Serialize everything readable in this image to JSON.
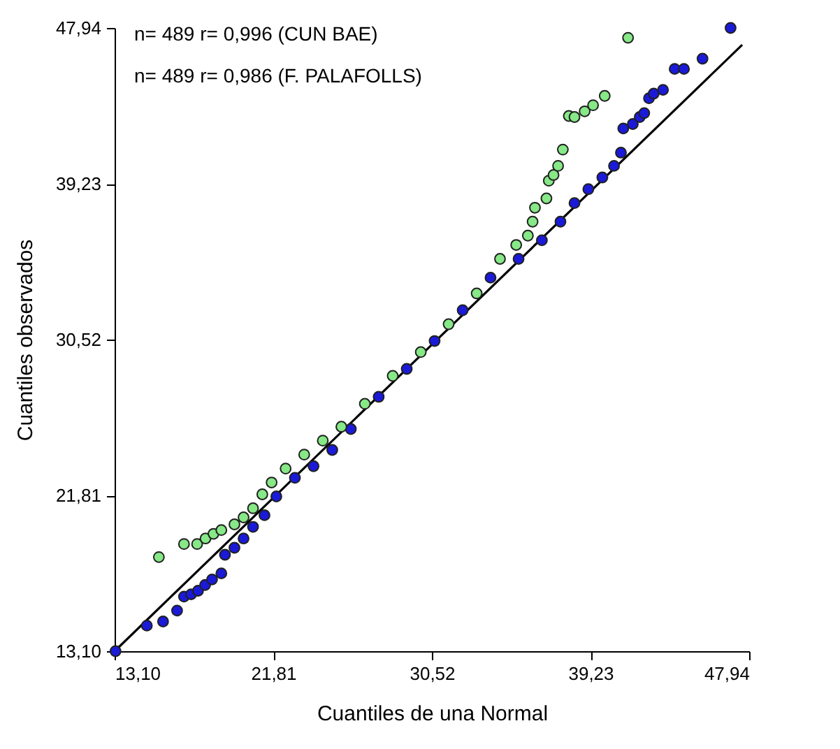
{
  "chart_data": {
    "type": "scatter",
    "xlabel": "Cuantiles de una Normal",
    "ylabel": "Cuantiles observados",
    "annotations": [
      "n= 489 r= 0,996 (CUN BAE)",
      "n= 489 r= 0,986 (F. PALAFOLLS)"
    ],
    "xlim": [
      13.1,
      47.94
    ],
    "ylim": [
      13.1,
      47.94
    ],
    "xticks": [
      {
        "value": 13.1,
        "label": "13,10"
      },
      {
        "value": 21.81,
        "label": "21,81"
      },
      {
        "value": 30.52,
        "label": "30,52"
      },
      {
        "value": 39.23,
        "label": "39,23"
      },
      {
        "value": 47.94,
        "label": "47,94"
      }
    ],
    "yticks": [
      {
        "value": 13.1,
        "label": "13,10"
      },
      {
        "value": 21.81,
        "label": "21,81"
      },
      {
        "value": 30.52,
        "label": "30,52"
      },
      {
        "value": 39.23,
        "label": "39,23"
      },
      {
        "value": 47.94,
        "label": "47,94"
      }
    ],
    "grid": false,
    "marker": "circle",
    "series": [
      {
        "type": "line",
        "marker": "none",
        "color": "#000000",
        "x": [
          13.1,
          47.56
        ],
        "values": [
          13.1,
          47.0
        ]
      },
      {
        "color": "#1a1ad8",
        "x": [
          13.15,
          14.87,
          15.76,
          16.53,
          16.91,
          17.3,
          17.68,
          18.07,
          18.45,
          18.96,
          19.16,
          19.68,
          20.18,
          20.7,
          21.33,
          21.98,
          23.0,
          24.02,
          25.05,
          26.07,
          27.6,
          29.14,
          30.67,
          32.21,
          33.74,
          35.28,
          36.56,
          37.58,
          38.35,
          39.11,
          39.88,
          40.52,
          40.9,
          41.03,
          41.55,
          41.93,
          42.18,
          42.44,
          42.7,
          43.21,
          43.85,
          44.36,
          45.38,
          46.92
        ],
        "values": [
          13.1,
          14.53,
          14.76,
          15.37,
          16.15,
          16.28,
          16.48,
          16.8,
          17.11,
          17.45,
          18.49,
          18.88,
          19.4,
          20.05,
          20.7,
          21.75,
          22.79,
          23.44,
          24.35,
          25.52,
          27.32,
          28.88,
          30.44,
          32.16,
          33.98,
          35.03,
          36.07,
          37.11,
          38.15,
          38.93,
          39.58,
          40.23,
          40.97,
          42.32,
          42.57,
          42.96,
          43.18,
          44.01,
          44.27,
          44.48,
          45.65,
          45.65,
          46.22,
          47.94
        ]
      },
      {
        "color": "#86e886",
        "x": [
          15.53,
          16.91,
          17.63,
          18.09,
          18.53,
          18.96,
          19.68,
          20.18,
          20.7,
          21.21,
          21.72,
          22.49,
          23.51,
          24.53,
          25.55,
          26.84,
          28.37,
          29.91,
          31.44,
          32.98,
          34.26,
          35.15,
          35.79,
          36.05,
          36.18,
          36.81,
          36.94,
          37.2,
          37.45,
          37.71,
          38.04,
          38.35,
          38.91,
          39.37,
          40.01,
          41.29
        ],
        "values": [
          18.36,
          19.09,
          19.09,
          19.4,
          19.66,
          19.87,
          20.19,
          20.58,
          21.09,
          21.87,
          22.53,
          23.31,
          24.09,
          24.87,
          25.65,
          26.93,
          28.49,
          29.82,
          31.38,
          33.1,
          35.03,
          35.81,
          36.33,
          37.11,
          37.89,
          38.41,
          39.4,
          39.72,
          40.23,
          41.14,
          43.02,
          42.96,
          43.28,
          43.62,
          44.14,
          47.39
        ]
      }
    ]
  }
}
